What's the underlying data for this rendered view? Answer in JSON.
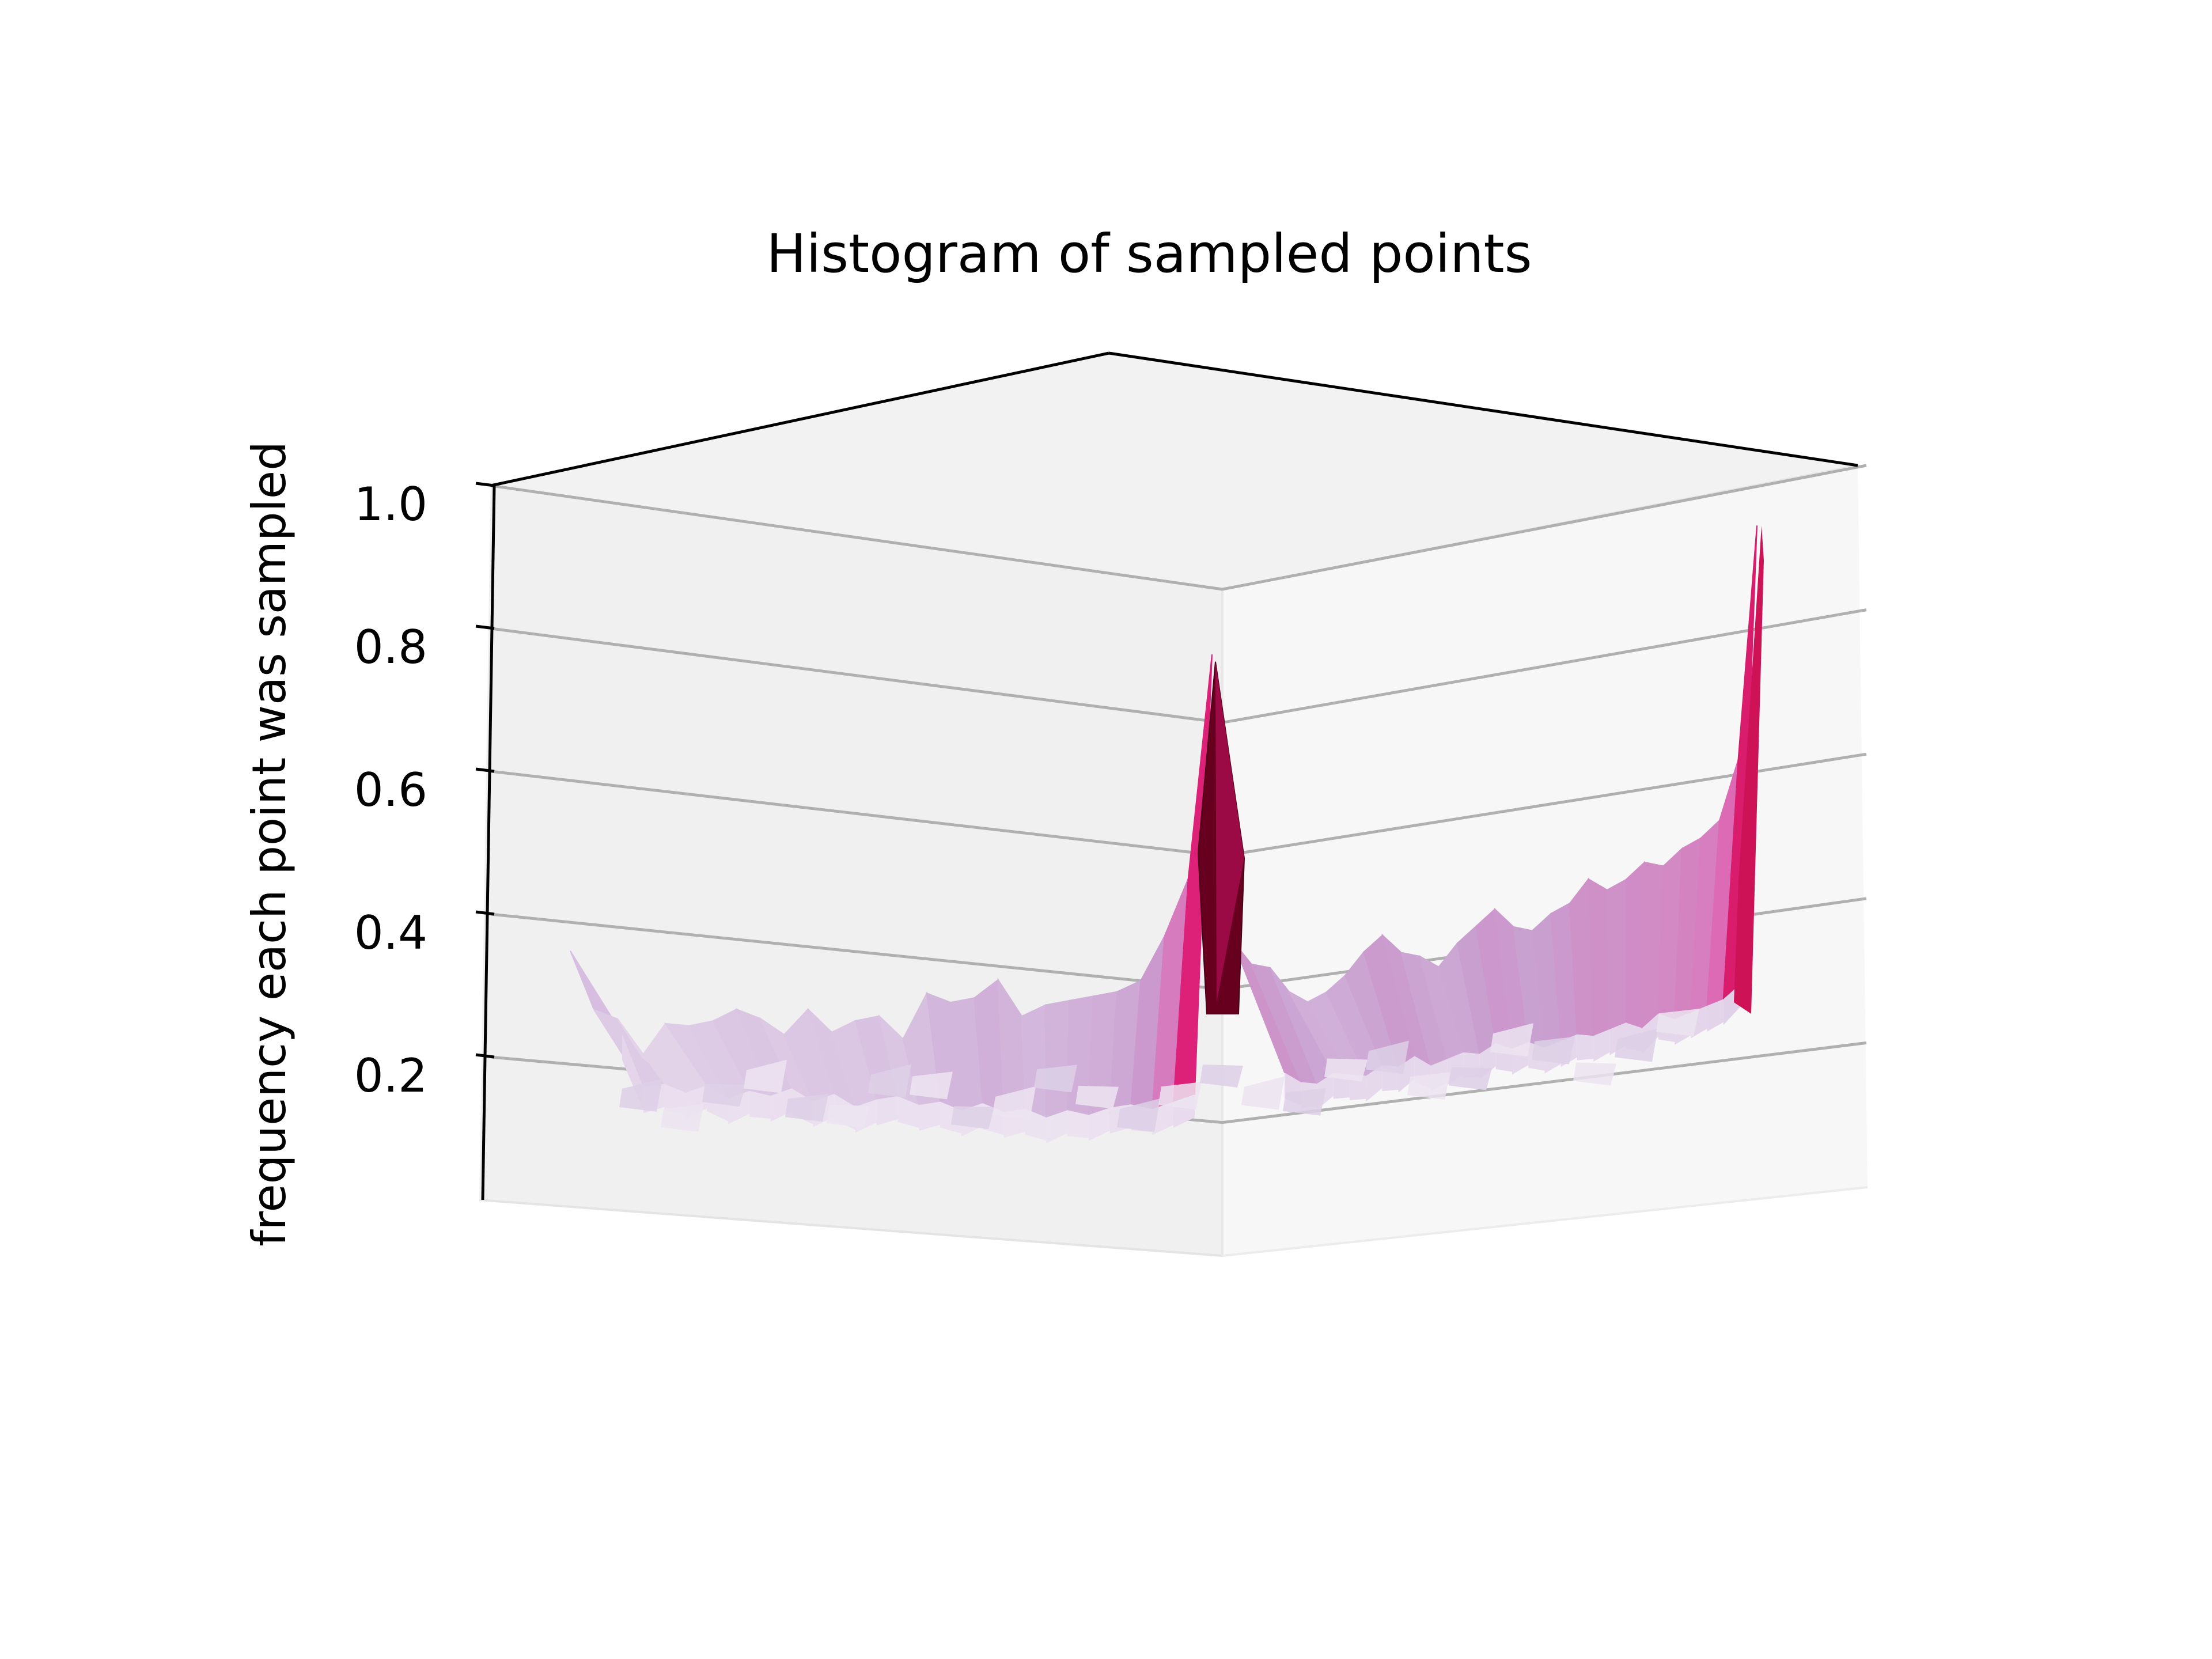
{
  "chart_data": {
    "type": "surface",
    "title": "Histogram of sampled points",
    "zlabel": "frequency each point was sampled",
    "zticks": [
      "0.2",
      "0.4",
      "0.6",
      "0.8",
      "1.0"
    ],
    "zlim": [
      0.0,
      1.0
    ],
    "grid": true,
    "colormap": [
      "#f3eef6",
      "#dcc8e4",
      "#c9a0d0",
      "#db6fb7",
      "#e7298a",
      "#ce1256",
      "#67001f"
    ],
    "back_left_profile": [
      0.36,
      0.28,
      0.27,
      0.22,
      0.27,
      0.27,
      0.28,
      0.3,
      0.29,
      0.27,
      0.31,
      0.28,
      0.3,
      0.31,
      0.28,
      0.35,
      0.34,
      0.35,
      0.38,
      0.33,
      0.35,
      0.36,
      0.37,
      0.38,
      0.4,
      0.47,
      0.56,
      0.9
    ],
    "back_right_profile": [
      0.47,
      0.43,
      0.42,
      0.38,
      0.36,
      0.37,
      0.39,
      0.42,
      0.44,
      0.41,
      0.4,
      0.38,
      0.41,
      0.43,
      0.45,
      0.42,
      0.41,
      0.43,
      0.44,
      0.47,
      0.45,
      0.46,
      0.48,
      0.47,
      0.49,
      0.5,
      0.52,
      0.6,
      0.92
    ],
    "front_left_profile": [
      0.3,
      0.17,
      0.18,
      0.16,
      0.18,
      0.15,
      0.17,
      0.16,
      0.18,
      0.15,
      0.17,
      0.14,
      0.16,
      0.17,
      0.15,
      0.16,
      0.14,
      0.16,
      0.14,
      0.15,
      0.13,
      0.15,
      0.14,
      0.16,
      0.17,
      0.16,
      0.18,
      0.2
    ],
    "front_right_profile": [
      0.24,
      0.21,
      0.2,
      0.22,
      0.21,
      0.2,
      0.22,
      0.21,
      0.23,
      0.2,
      0.21,
      0.22,
      0.21,
      0.23,
      0.21,
      0.22,
      0.2,
      0.21,
      0.22,
      0.21,
      0.22,
      0.23,
      0.21,
      0.24,
      0.22,
      0.23,
      0.24,
      0.25,
      0.28
    ]
  }
}
